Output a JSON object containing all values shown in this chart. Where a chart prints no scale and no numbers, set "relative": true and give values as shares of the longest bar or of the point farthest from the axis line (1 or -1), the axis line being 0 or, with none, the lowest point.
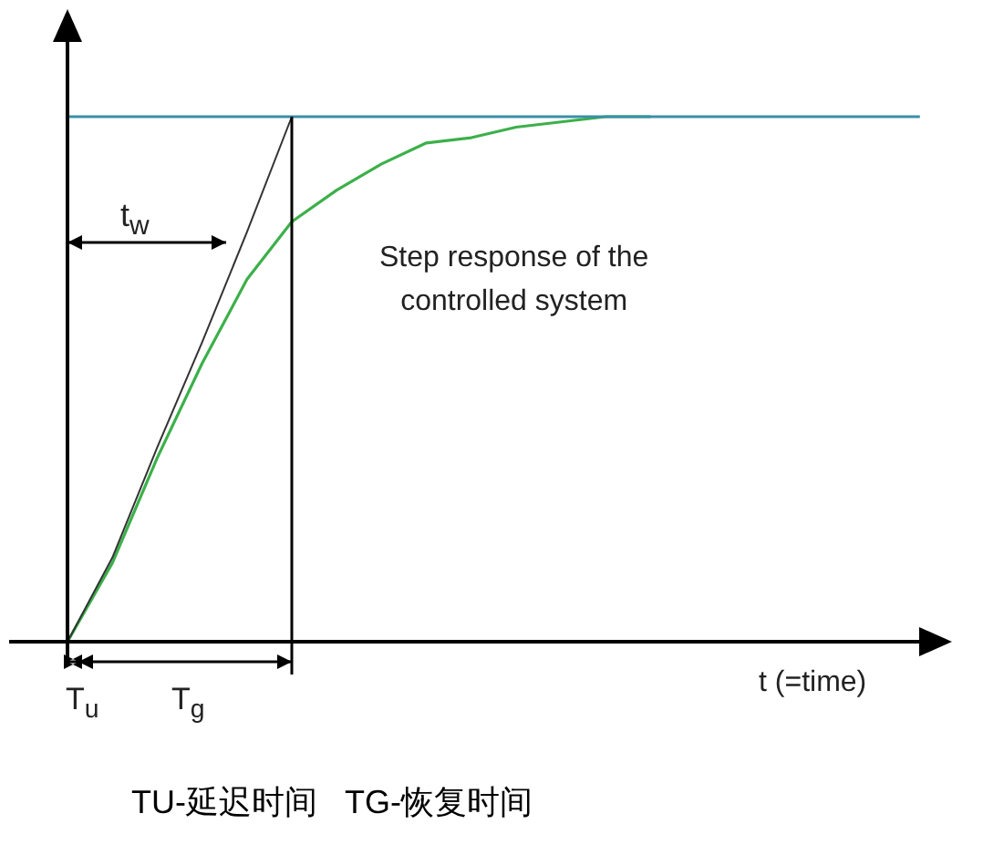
{
  "chart_data": {
    "type": "line",
    "relative": true,
    "xlabel": "t (=time)",
    "legend": false,
    "marker": "none",
    "line_style": "solid",
    "categories": [
      null,
      null,
      null,
      null,
      null,
      null,
      null,
      null,
      null,
      null,
      null,
      null,
      null,
      null,
      null,
      null,
      null,
      null,
      null,
      null
    ],
    "series": [
      {
        "color": "#3a8fa8",
        "values": [
          1,
          1,
          1,
          1,
          1,
          1,
          1,
          1,
          1,
          1,
          1,
          1,
          1,
          1,
          1,
          1,
          1,
          1,
          1,
          1
        ]
      },
      {
        "color": "#333333",
        "values": [
          0,
          0.16,
          0.37,
          0.57,
          0.78,
          1,
          null,
          null,
          null,
          null,
          null,
          null,
          null,
          null,
          null,
          null,
          null,
          null,
          null,
          null
        ]
      },
      {
        "color": "#3cb04a",
        "values": [
          0,
          0.15,
          0.35,
          0.53,
          0.69,
          0.8,
          0.86,
          0.91,
          0.95,
          0.96,
          0.98,
          0.99,
          1,
          1,
          null,
          null,
          null,
          null,
          null,
          null
        ]
      }
    ],
    "annotations": [
      "t$_{w}$",
      "T$_{u}$",
      "T$_{g}$",
      "Step response of the\ncontrolled system",
      "TU-延迟时间   TG-恢复时间"
    ]
  }
}
